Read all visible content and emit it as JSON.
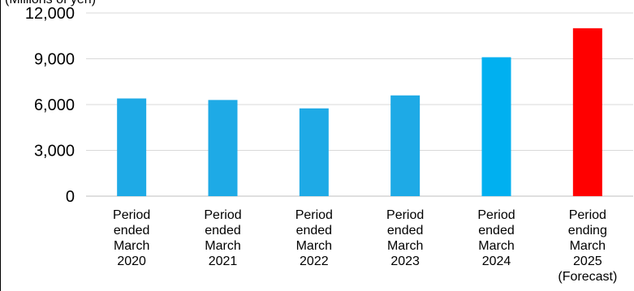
{
  "chart_data": {
    "type": "bar",
    "unit_label": "(Millions of yen)",
    "categories": [
      [
        "Period",
        "ended",
        "March",
        "2020"
      ],
      [
        "Period",
        "ended",
        "March",
        "2021"
      ],
      [
        "Period",
        "ended",
        "March",
        "2022"
      ],
      [
        "Period",
        "ended",
        "March",
        "2023"
      ],
      [
        "Period",
        "ended",
        "March",
        "2024"
      ],
      [
        "Period",
        "ending",
        "March",
        "2025",
        "(Forecast)"
      ]
    ],
    "values": [
      6400,
      6300,
      5750,
      6600,
      9100,
      11000
    ],
    "colors": [
      "#1eaae6",
      "#1eaae6",
      "#1eaae6",
      "#1eaae6",
      "#00b0f0",
      "#ff0000"
    ],
    "yticks": [
      "0",
      "3,000",
      "6,000",
      "9,000",
      "12,000"
    ],
    "ylim": [
      0,
      12000
    ],
    "grid": true,
    "legend": "none"
  }
}
